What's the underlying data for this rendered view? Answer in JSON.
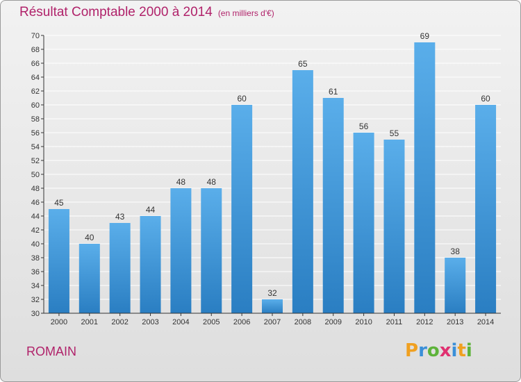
{
  "title": "Résultat Comptable 2000 à 2014",
  "subtitle": "(en milliers d'€)",
  "town": "ROMAIN",
  "logo": {
    "text": "Proxiti",
    "letters": [
      "P",
      "r",
      "o",
      "x",
      "i",
      "t",
      "i"
    ],
    "colors": [
      "#f0a020",
      "#3a8fd8",
      "#5db33a",
      "#e03070",
      "#3a8fd8",
      "#f0a020",
      "#5db33a"
    ]
  },
  "colors": {
    "bar_top": "#5aaeea",
    "bar_bottom": "#2a7ec2",
    "title": "#b0226a",
    "grid": "#ffffff"
  },
  "chart_data": {
    "type": "bar",
    "title": "Résultat Comptable 2000 à 2014",
    "subtitle": "(en milliers d'€)",
    "categories": [
      "2000",
      "2001",
      "2002",
      "2003",
      "2004",
      "2005",
      "2006",
      "2007",
      "2008",
      "2009",
      "2010",
      "2011",
      "2012",
      "2013",
      "2014"
    ],
    "values": [
      45,
      40,
      43,
      44,
      48,
      48,
      60,
      32,
      65,
      61,
      56,
      55,
      69,
      38,
      60
    ],
    "ylim": [
      30,
      70
    ],
    "yticks": [
      30,
      32,
      34,
      36,
      38,
      40,
      42,
      44,
      46,
      48,
      50,
      52,
      54,
      56,
      58,
      60,
      62,
      64,
      66,
      68,
      70
    ],
    "xlabel": "",
    "ylabel": "",
    "grid": true,
    "data_labels": true
  }
}
